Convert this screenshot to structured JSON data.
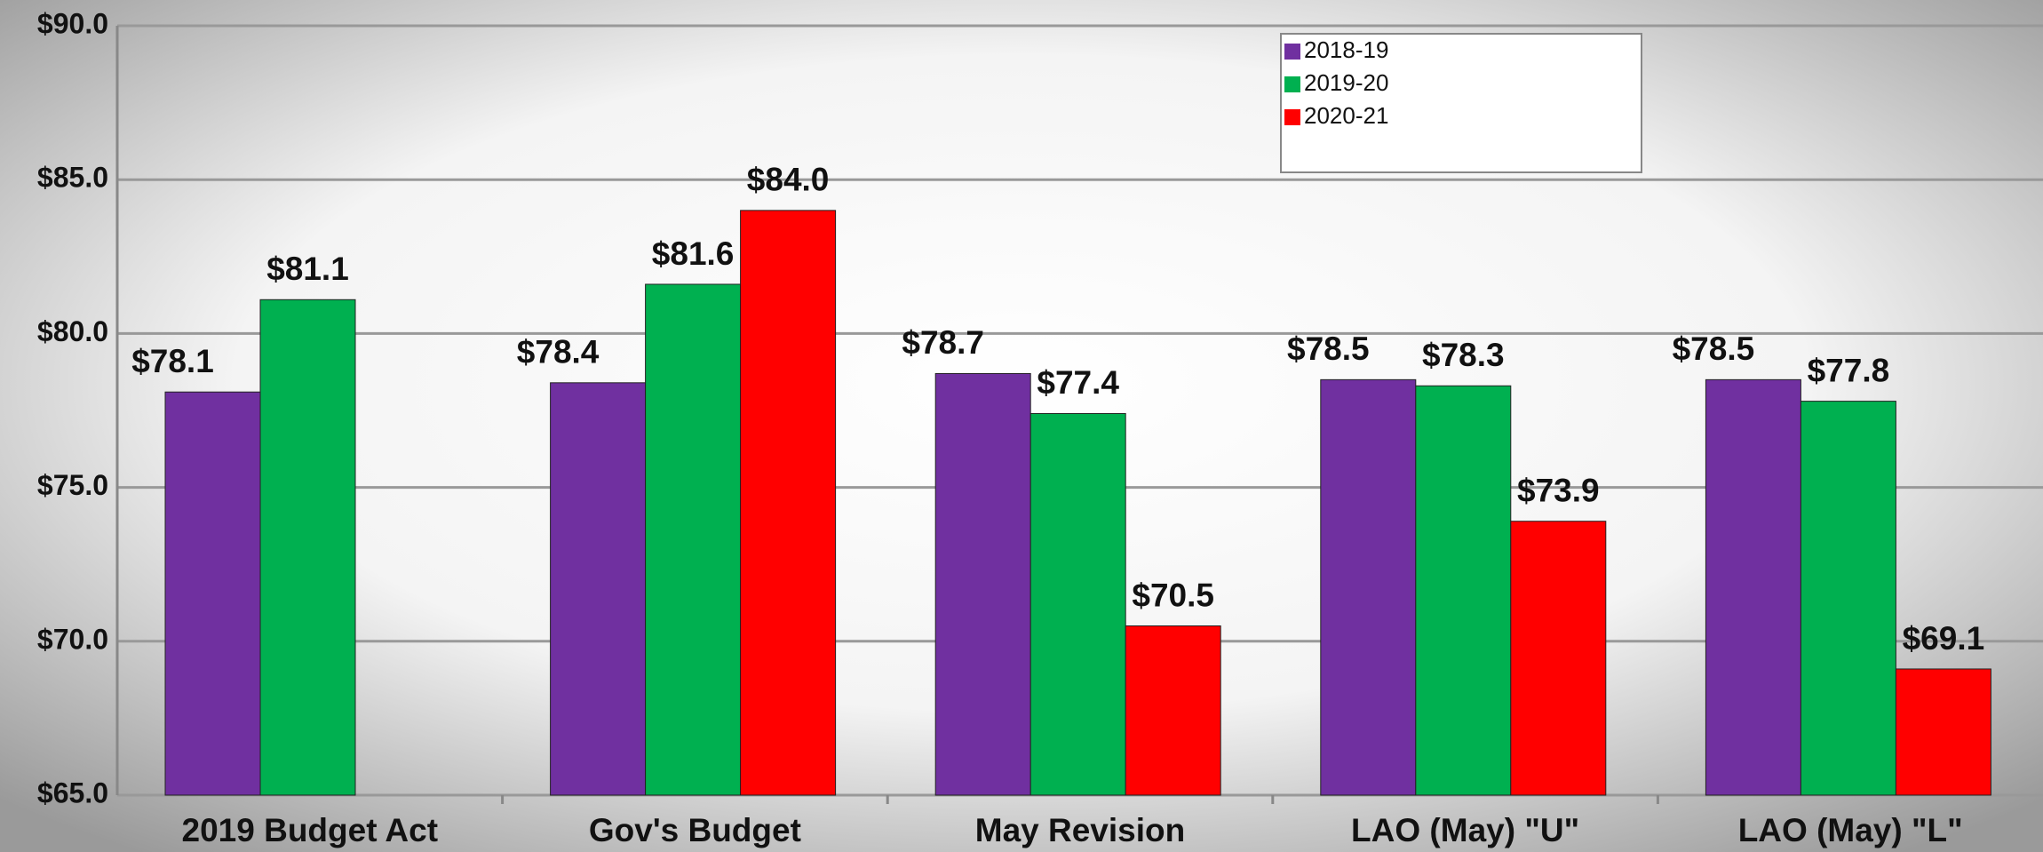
{
  "chart_data": {
    "type": "bar",
    "categories": [
      "2019 Budget Act",
      "Gov's Budget",
      "May Revision",
      "LAO (May) \"U\"",
      "LAO (May) \"L\""
    ],
    "series": [
      {
        "name": "2018-19",
        "color": "#7030a0",
        "values": [
          78.1,
          78.4,
          78.7,
          78.5,
          78.5
        ],
        "value_labels": [
          "$78.1",
          "$78.4",
          "$78.7",
          "$78.5",
          "$78.5"
        ]
      },
      {
        "name": "2019-20",
        "color": "#00b050",
        "values": [
          81.1,
          81.6,
          77.4,
          78.3,
          77.8
        ],
        "value_labels": [
          "$81.1",
          "$81.6",
          "$77.4",
          "$78.3",
          "$77.8"
        ]
      },
      {
        "name": "2020-21",
        "color": "#ff0000",
        "values": [
          null,
          84.0,
          70.5,
          73.9,
          69.1
        ],
        "value_labels": [
          null,
          "$84.0",
          "$70.5",
          "$73.9",
          "$69.1"
        ]
      }
    ],
    "ylim": [
      65,
      90
    ],
    "yticks": [
      {
        "value": 65,
        "label": "$65.0"
      },
      {
        "value": 70,
        "label": "$70.0"
      },
      {
        "value": 75,
        "label": "$75.0"
      },
      {
        "value": 80,
        "label": "$80.0"
      },
      {
        "value": 85,
        "label": "$85.0"
      },
      {
        "value": 90,
        "label": "$90.0"
      }
    ],
    "grid": true,
    "legend": "top-right"
  }
}
